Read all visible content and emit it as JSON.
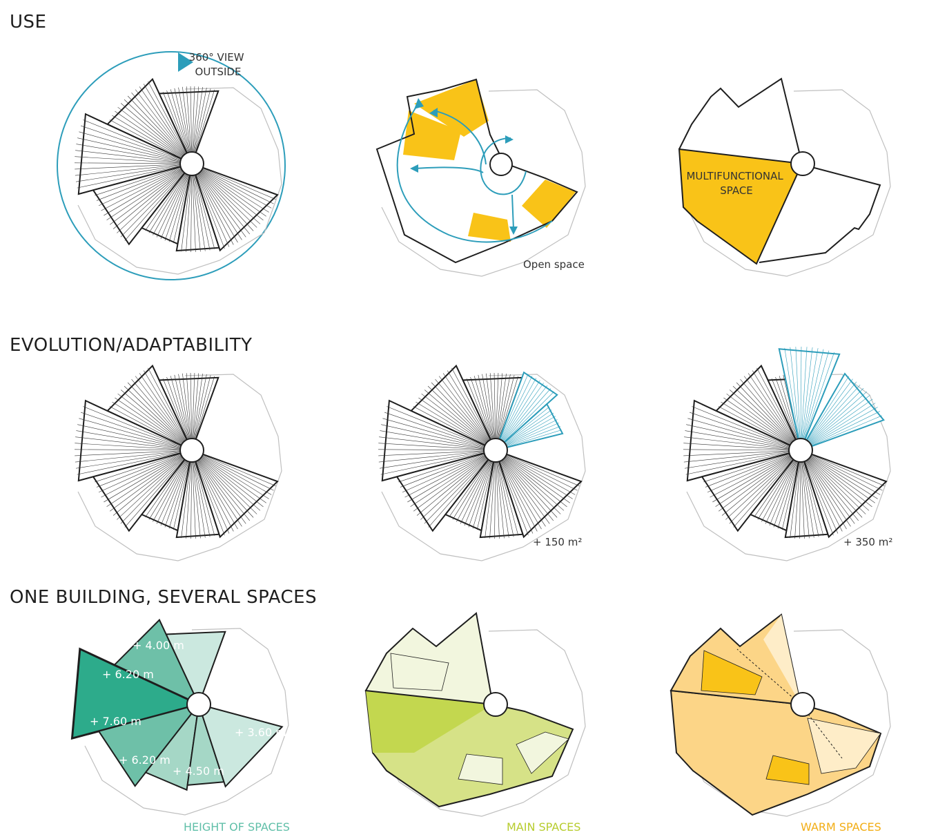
{
  "sections": [
    {
      "title": "USE",
      "diagrams": [
        {
          "name": "sheltered-rooms",
          "annotation": "360° VIEW\nOUTSIDE"
        },
        {
          "name": "open-space-circulation",
          "caption": "Open space"
        },
        {
          "name": "multifunctional-space",
          "label": "MULTIFUNCTIONAL\nSPACE"
        }
      ]
    },
    {
      "title": "EVOLUTION/ADAPTABILITY",
      "diagrams": [
        {
          "name": "initial-building"
        },
        {
          "name": "extension-one",
          "caption": "+ 150 m²"
        },
        {
          "name": "extension-two",
          "caption": "+ 350 m²"
        }
      ]
    },
    {
      "title": "ONE BUILDING, SEVERAL SPACES",
      "diagrams": [
        {
          "name": "height-of-spaces",
          "caption": "HEIGHT OF SPACES",
          "heights": [
            "+ 4.00 m",
            "+ 6.20 m",
            "+ 7.60 m",
            "+ 6.20 m",
            "+ 4.50 m",
            "+ 3.60 m"
          ]
        },
        {
          "name": "main-spaces",
          "caption": "MAIN SPACES"
        },
        {
          "name": "warm-spaces",
          "caption": "WARM SPACES"
        }
      ]
    }
  ],
  "colors": {
    "yellow": "#f9c318",
    "blue": "#2c9dba",
    "teal_dark": "#2dab8b",
    "teal_mid": "#6ec0a8",
    "teal_light": "#a5d7c6",
    "teal_pale": "#cbe8df",
    "green_dark": "#c3d74f",
    "green_mid": "#d6e287",
    "green_pale": "#f2f6de",
    "orange_dark": "#f9c318",
    "orange_mid": "#fcd587",
    "orange_pale": "#feedc8",
    "caption_teal": "#5fbfa8",
    "caption_green": "#b7cc2d",
    "caption_orange": "#f2ad14"
  }
}
